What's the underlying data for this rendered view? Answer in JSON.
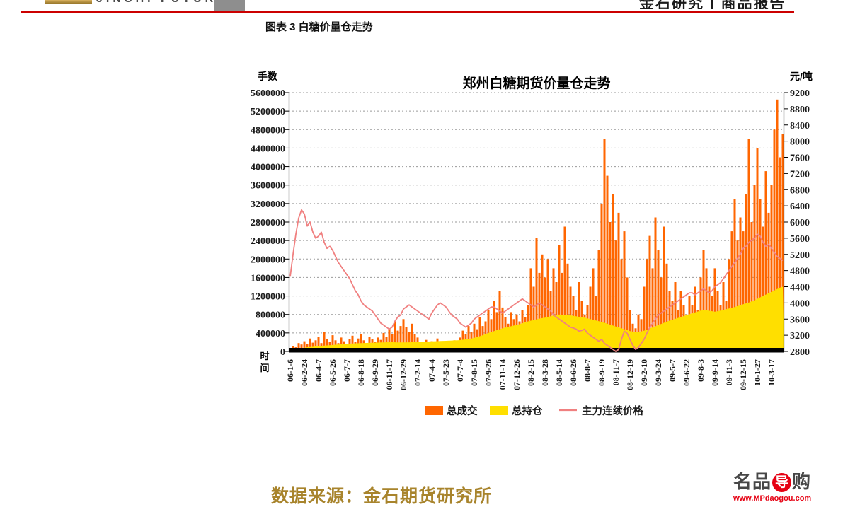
{
  "header": {
    "brand_text": "JINSHI FUTURES",
    "right_text": "金石研究 | 商品报告",
    "rule_color": "#cc0000"
  },
  "caption": "图表 3 白糖价量仓走势",
  "chart_data": {
    "type": "bar",
    "subtype": "bar+area+line combo",
    "title": "郑州白糖期货价量仓走势",
    "left_axis": {
      "label": "手数",
      "min": 0,
      "max": 5600000,
      "step": 400000
    },
    "right_axis": {
      "label": "元/吨",
      "min": 2800,
      "max": 9200,
      "step": 400
    },
    "x_axis": {
      "label": "时间",
      "ticks_every": 5,
      "tick_labels": [
        "06-1-6",
        "06-2-24",
        "06-4-7",
        "06-5-26",
        "06-7-7",
        "06-8-18",
        "06-9-29",
        "06-11-17",
        "06-12-29",
        "07-2-14",
        "07-4-4",
        "07-5-23",
        "07-7-4",
        "07-8-15",
        "07-9-26",
        "07-11-14",
        "07-12-26",
        "08-2-15",
        "08-3-28",
        "08-5-14",
        "08-6-26",
        "08-8-7",
        "08-9-19",
        "08-11-7",
        "08-12-19",
        "09-2-10",
        "09-3-24",
        "09-5-7",
        "09-6-22",
        "09-8-3",
        "09-9-14",
        "09-11-3",
        "09-12-15",
        "10-1-27",
        "10-3-17"
      ]
    },
    "legend": [
      {
        "name": "总成交",
        "type": "bar",
        "color": "#FF6600"
      },
      {
        "name": "总持仓",
        "type": "area",
        "color": "#FFDF00"
      },
      {
        "name": "主力连续价格",
        "type": "line",
        "color": "#F08080"
      }
    ],
    "grid": "dotted-horizontal",
    "series": {
      "volume": [
        60000,
        120000,
        90000,
        180000,
        150000,
        220000,
        160000,
        280000,
        190000,
        240000,
        310000,
        180000,
        420000,
        260000,
        200000,
        350000,
        240000,
        180000,
        300000,
        220000,
        160000,
        260000,
        340000,
        200000,
        280000,
        380000,
        240000,
        180000,
        320000,
        260000,
        200000,
        300000,
        250000,
        400000,
        320000,
        500000,
        380000,
        650000,
        450000,
        550000,
        700000,
        520000,
        420000,
        600000,
        380000,
        300000,
        200000,
        150000,
        250000,
        180000,
        220000,
        150000,
        280000,
        190000,
        160000,
        140000,
        200000,
        160000,
        240000,
        180000,
        300000,
        450000,
        380000,
        550000,
        420000,
        600000,
        480000,
        750000,
        550000,
        650000,
        900000,
        700000,
        1100000,
        850000,
        1300000,
        950000,
        750000,
        600000,
        850000,
        700000,
        800000,
        650000,
        900000,
        750000,
        1000000,
        1800000,
        1400000,
        2450000,
        1700000,
        2100000,
        1600000,
        2000000,
        1300000,
        1800000,
        1500000,
        2300000,
        1700000,
        2700000,
        1900000,
        1400000,
        1200000,
        900000,
        1500000,
        1100000,
        800000,
        1000000,
        1400000,
        1800000,
        1200000,
        2200000,
        3200000,
        4600000,
        3800000,
        2800000,
        3400000,
        2400000,
        3000000,
        2000000,
        2600000,
        1600000,
        900000,
        600000,
        500000,
        800000,
        700000,
        1400000,
        2000000,
        2500000,
        1800000,
        2900000,
        2200000,
        1600000,
        2700000,
        1900000,
        1300000,
        1100000,
        1500000,
        900000,
        1300000,
        1000000,
        800000,
        1200000,
        1000000,
        1400000,
        900000,
        1600000,
        2200000,
        1800000,
        1400000,
        1200000,
        1800000,
        1300000,
        1000000,
        1500000,
        1100000,
        2000000,
        2600000,
        3300000,
        2400000,
        2900000,
        2600000,
        3400000,
        4600000,
        2800000,
        3600000,
        4400000,
        3300000,
        2700000,
        3900000,
        3000000,
        3600000,
        4800000,
        5450000,
        4200000,
        4700000
      ],
      "open_interest": [
        30000,
        40000,
        50000,
        60000,
        70000,
        80000,
        90000,
        95000,
        100000,
        110000,
        115000,
        120000,
        125000,
        130000,
        135000,
        140000,
        145000,
        150000,
        155000,
        160000,
        165000,
        170000,
        172000,
        175000,
        178000,
        180000,
        182000,
        184000,
        186000,
        188000,
        190000,
        192000,
        194000,
        196000,
        198000,
        200000,
        200000,
        198000,
        196000,
        195000,
        195000,
        196000,
        198000,
        200000,
        202000,
        205000,
        208000,
        210000,
        212000,
        215000,
        218000,
        220000,
        222000,
        225000,
        228000,
        230000,
        232000,
        235000,
        238000,
        240000,
        245000,
        252000,
        260000,
        270000,
        280000,
        295000,
        310000,
        330000,
        350000,
        375000,
        400000,
        420000,
        440000,
        460000,
        480000,
        500000,
        515000,
        530000,
        545000,
        560000,
        575000,
        590000,
        610000,
        630000,
        650000,
        665000,
        680000,
        695000,
        710000,
        720000,
        730000,
        745000,
        760000,
        775000,
        790000,
        800000,
        795000,
        790000,
        785000,
        780000,
        770000,
        760000,
        750000,
        740000,
        730000,
        715000,
        700000,
        685000,
        670000,
        655000,
        640000,
        620000,
        600000,
        580000,
        560000,
        540000,
        520000,
        500000,
        480000,
        460000,
        440000,
        430000,
        420000,
        425000,
        435000,
        450000,
        470000,
        495000,
        520000,
        545000,
        570000,
        595000,
        620000,
        645000,
        665000,
        685000,
        705000,
        725000,
        745000,
        765000,
        785000,
        805000,
        825000,
        845000,
        865000,
        885000,
        900000,
        890000,
        880000,
        870000,
        860000,
        870000,
        885000,
        900000,
        915000,
        930000,
        945000,
        960000,
        980000,
        1000000,
        1020000,
        1040000,
        1060000,
        1085000,
        1110000,
        1140000,
        1170000,
        1200000,
        1230000,
        1260000,
        1290000,
        1320000,
        1350000,
        1380000,
        1400000
      ],
      "price": [
        4650,
        5200,
        5700,
        6100,
        6300,
        6200,
        5900,
        6000,
        5750,
        5600,
        5650,
        5750,
        5500,
        5350,
        5400,
        5300,
        5150,
        5000,
        4900,
        4800,
        4700,
        4600,
        4450,
        4300,
        4200,
        4050,
        3950,
        3900,
        3850,
        3800,
        3700,
        3600,
        3500,
        3450,
        3400,
        3350,
        3400,
        3550,
        3650,
        3700,
        3850,
        3900,
        3950,
        3900,
        3850,
        3800,
        3750,
        3700,
        3650,
        3600,
        3750,
        3850,
        3950,
        4000,
        3950,
        3900,
        3800,
        3700,
        3650,
        3600,
        3500,
        3450,
        3400,
        3450,
        3500,
        3600,
        3650,
        3700,
        3750,
        3800,
        3850,
        3900,
        3900,
        3850,
        3800,
        3750,
        3800,
        3850,
        3900,
        3950,
        4000,
        4050,
        4100,
        4050,
        4000,
        3950,
        3900,
        3950,
        4000,
        3950,
        3900,
        3850,
        3800,
        3700,
        3650,
        3600,
        3550,
        3500,
        3450,
        3400,
        3380,
        3350,
        3300,
        3320,
        3350,
        3250,
        3200,
        3150,
        3100,
        3050,
        3100,
        3000,
        2950,
        2900,
        2850,
        2800,
        2850,
        3100,
        3300,
        3250,
        3100,
        2950,
        2850,
        2900,
        3000,
        3100,
        3250,
        3400,
        3500,
        3600,
        3700,
        3750,
        3800,
        3850,
        3900,
        3950,
        4000,
        4050,
        4100,
        4150,
        4200,
        4250,
        4250,
        4200,
        4250,
        4300,
        4350,
        4300,
        4250,
        4300,
        4400,
        4450,
        4500,
        4600,
        4700,
        4800,
        4900,
        5000,
        5100,
        5200,
        5350,
        5400,
        5500,
        5550,
        5600,
        5700,
        5650,
        5500,
        5400,
        5450,
        5350,
        5250,
        5150,
        5100,
        5050
      ]
    }
  },
  "footer": {
    "source": "数据来源：金石期货研究所"
  },
  "watermark": {
    "brand_prefix": "名品",
    "brand_circle": "导",
    "brand_suffix": "购",
    "url": "www.MPdaogou.com"
  }
}
